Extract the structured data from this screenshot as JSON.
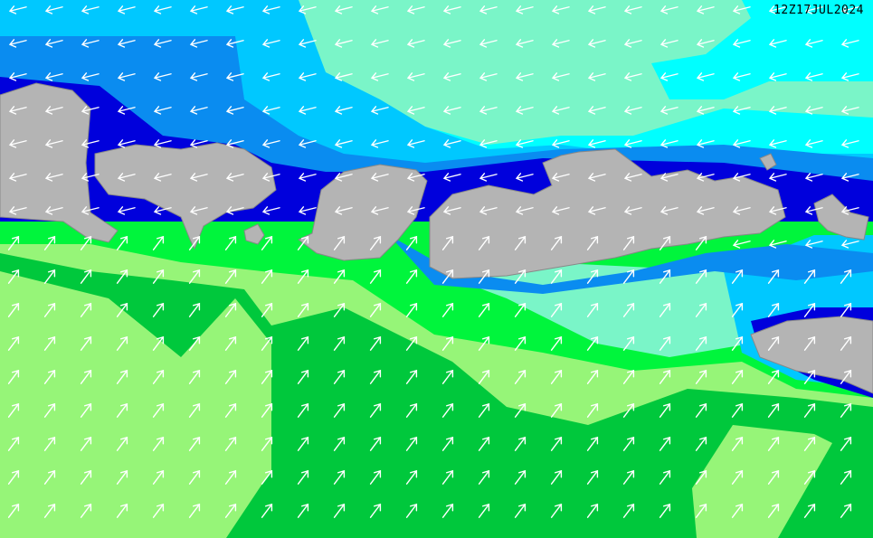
{
  "timestamp": "12Z17JUL2024",
  "colors": {
    "deep_blue": "#0000dc",
    "blue": "#0a8cf0",
    "sky_blue": "#00c8ff",
    "cyan": "#00ffff",
    "aquamarine": "#7af5c8",
    "bright_green": "#00f53c",
    "green": "#00c83c",
    "light_green": "#96f578",
    "land": "#b4b4b4",
    "arrow": "#ffffff"
  },
  "wind": {
    "north_of_islands": "west",
    "south_of_islands": "northeast"
  }
}
